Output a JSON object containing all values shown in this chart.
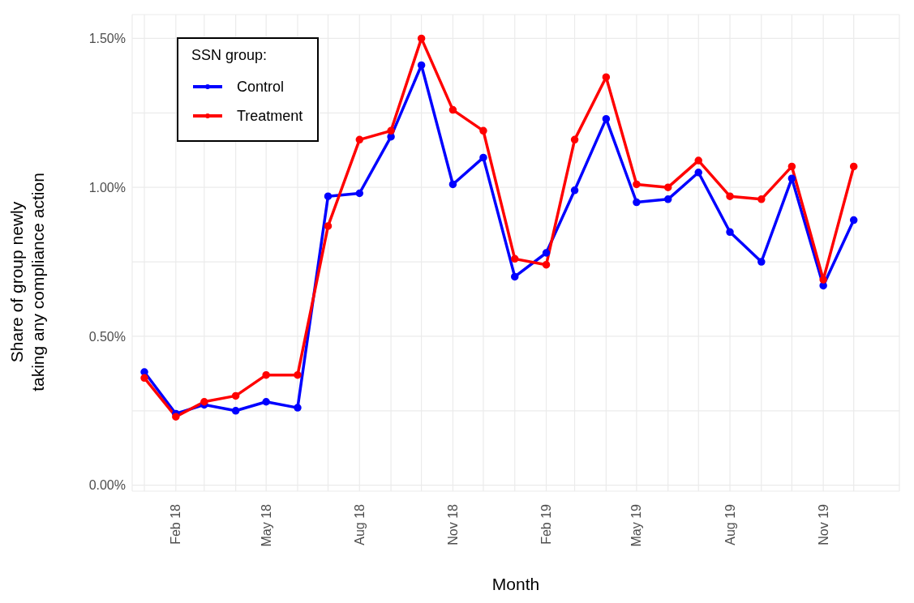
{
  "chart_data": {
    "type": "line",
    "xlabel": "Month",
    "ylabel": "Share of group newly\ntaking any compliance action",
    "legend_title": "SSN group:",
    "legend": "top left",
    "grid": true,
    "marker": "circle",
    "line_style": "solid",
    "x": [
      "2018-01",
      "2018-02",
      "2018-03",
      "2018-04",
      "2018-05",
      "2018-06",
      "2018-07",
      "2018-08",
      "2018-09",
      "2018-10",
      "2018-11",
      "2018-12",
      "2019-01",
      "2019-02",
      "2019-03",
      "2019-04",
      "2019-05",
      "2019-06",
      "2019-07",
      "2019-08",
      "2019-09",
      "2019-10",
      "2019-11",
      "2019-12"
    ],
    "xlim": [
      "2017-12-20",
      "2020-01-15"
    ],
    "xticks": [
      {
        "value": "2018-01",
        "label": null
      },
      {
        "value": "2018-02",
        "label": "Feb 18"
      },
      {
        "value": "2018-03",
        "label": null
      },
      {
        "value": "2018-04",
        "label": null
      },
      {
        "value": "2018-05",
        "label": "May 18"
      },
      {
        "value": "2018-06",
        "label": null
      },
      {
        "value": "2018-07",
        "label": null
      },
      {
        "value": "2018-08",
        "label": "Aug 18"
      },
      {
        "value": "2018-09",
        "label": null
      },
      {
        "value": "2018-10",
        "label": null
      },
      {
        "value": "2018-11",
        "label": "Nov 18"
      },
      {
        "value": "2018-12",
        "label": null
      },
      {
        "value": "2019-01",
        "label": null
      },
      {
        "value": "2019-02",
        "label": "Feb 19"
      },
      {
        "value": "2019-03",
        "label": null
      },
      {
        "value": "2019-04",
        "label": null
      },
      {
        "value": "2019-05",
        "label": "May 19"
      },
      {
        "value": "2019-06",
        "label": null
      },
      {
        "value": "2019-07",
        "label": null
      },
      {
        "value": "2019-08",
        "label": "Aug 19"
      },
      {
        "value": "2019-09",
        "label": null
      },
      {
        "value": "2019-10",
        "label": null
      },
      {
        "value": "2019-11",
        "label": "Nov 19"
      },
      {
        "value": "2019-12",
        "label": null
      }
    ],
    "ylim": [
      -0.02,
      1.58
    ],
    "yticks": [
      {
        "value": 0,
        "label": "0.00%"
      },
      {
        "value": 0.25,
        "label": null
      },
      {
        "value": 0.5,
        "label": "0.50%"
      },
      {
        "value": 0.75,
        "label": null
      },
      {
        "value": 1,
        "label": "1.00%"
      },
      {
        "value": 1.25,
        "label": null
      },
      {
        "value": 1.5,
        "label": "1.50%"
      }
    ],
    "series": [
      {
        "name": "Control",
        "color": "#0000ff",
        "values": [
          0.38,
          0.24,
          0.27,
          0.25,
          0.28,
          0.26,
          0.97,
          0.98,
          1.17,
          1.41,
          1.01,
          1.1,
          0.7,
          0.78,
          0.99,
          1.23,
          0.95,
          0.96,
          1.05,
          0.85,
          0.75,
          1.03,
          0.67,
          0.89
        ]
      },
      {
        "name": "Treatment",
        "color": "#ff0000",
        "values": [
          0.36,
          0.23,
          0.28,
          0.3,
          0.37,
          0.37,
          0.87,
          1.16,
          1.19,
          1.5,
          1.26,
          1.19,
          0.76,
          0.74,
          1.16,
          1.37,
          1.01,
          1,
          1.09,
          0.97,
          0.96,
          1.07,
          0.69,
          1.07
        ]
      }
    ]
  }
}
